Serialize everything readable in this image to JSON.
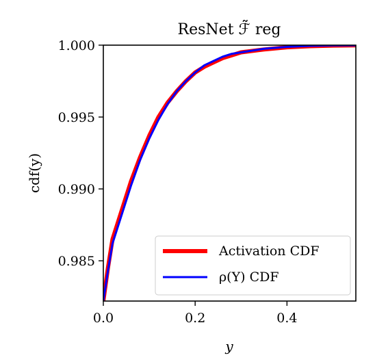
{
  "chart_data": {
    "type": "line",
    "title": "ResNet ℱ̃ reg",
    "xlabel": "y",
    "ylabel": "cdf(y)",
    "xlim": [
      0.0,
      0.55
    ],
    "ylim": [
      0.9822,
      1.0
    ],
    "xticks": [
      0.0,
      0.2,
      0.4
    ],
    "xtick_labels": [
      "0.0",
      "0.2",
      "0.4"
    ],
    "yticks": [
      0.985,
      0.99,
      0.995,
      1.0
    ],
    "ytick_labels": [
      "0.985",
      "0.990",
      "0.995",
      "1.000"
    ],
    "grid": false,
    "legend_position": "lower-right",
    "series": [
      {
        "name": "Activation CDF",
        "color": "#ff0000",
        "x": [
          0.0,
          0.01,
          0.02,
          0.04,
          0.06,
          0.08,
          0.1,
          0.12,
          0.14,
          0.16,
          0.18,
          0.2,
          0.22,
          0.24,
          0.26,
          0.28,
          0.3,
          0.35,
          0.4,
          0.45,
          0.5,
          0.55
        ],
        "y": [
          0.9822,
          0.9845,
          0.9865,
          0.9885,
          0.9905,
          0.9922,
          0.9937,
          0.995,
          0.996,
          0.9968,
          0.9975,
          0.9981,
          0.9985,
          0.9988,
          0.9991,
          0.9993,
          0.9995,
          0.9997,
          0.99985,
          0.99993,
          0.99997,
          0.99999
        ]
      },
      {
        "name": "ρ(Y) CDF",
        "color": "#0000ff",
        "x": [
          0.0,
          0.01,
          0.02,
          0.04,
          0.06,
          0.08,
          0.1,
          0.12,
          0.14,
          0.16,
          0.18,
          0.2,
          0.22,
          0.24,
          0.26,
          0.28,
          0.3,
          0.35,
          0.4,
          0.45,
          0.5,
          0.55
        ],
        "y": [
          0.9822,
          0.9843,
          0.9862,
          0.9882,
          0.9902,
          0.992,
          0.9935,
          0.9948,
          0.9959,
          0.9968,
          0.9975,
          0.9981,
          0.9986,
          0.9989,
          0.9992,
          0.9994,
          0.9995,
          0.99975,
          0.99988,
          0.99995,
          0.99998,
          0.99999
        ]
      }
    ]
  }
}
